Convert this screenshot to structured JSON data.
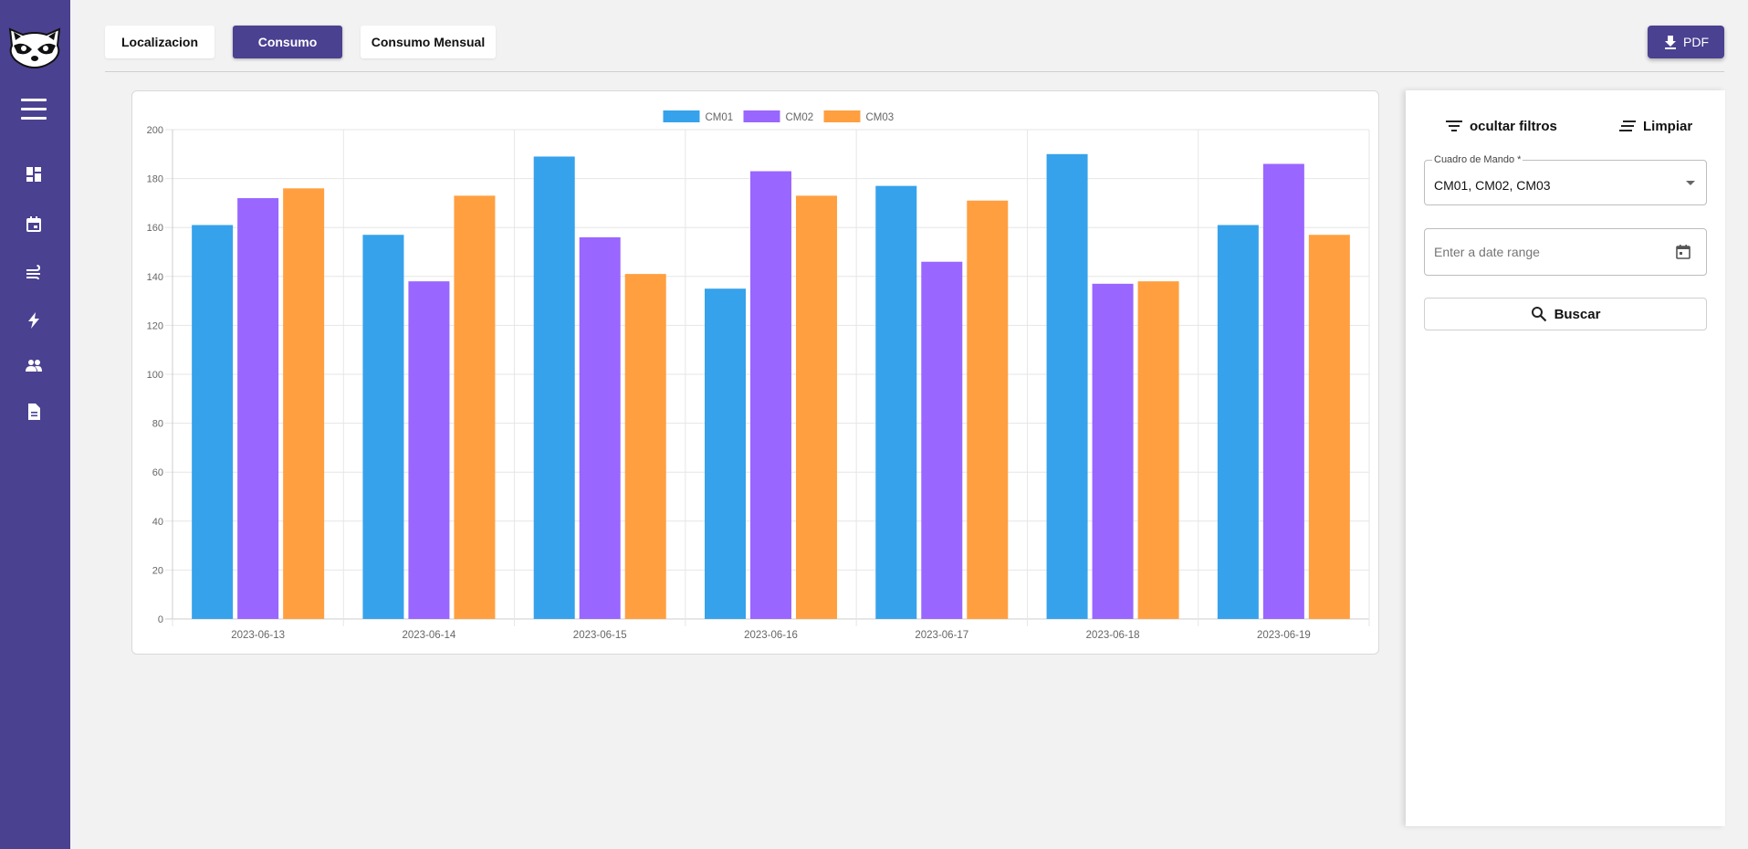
{
  "nav": {
    "items": [
      {
        "icon": "dashboard-icon"
      },
      {
        "icon": "calendar-icon"
      },
      {
        "icon": "wind-icon"
      },
      {
        "icon": "bolt-icon"
      },
      {
        "icon": "people-icon"
      },
      {
        "icon": "document-icon"
      }
    ]
  },
  "tabs": {
    "localizacion": "Localizacion",
    "consumo": "Consumo",
    "consumo_mensual": "Consumo Mensual"
  },
  "toolbar": {
    "pdf_label": "PDF"
  },
  "filters": {
    "hide_label": "ocultar filtros",
    "clear_label": "Limpiar",
    "cuadro_label": "Cuadro de Mando *",
    "cuadro_value": "CM01, CM02, CM03",
    "date_placeholder": "Enter a date range",
    "search_label": "Buscar"
  },
  "colors": {
    "accent": "#4a4191",
    "cm01": "#36a2eb",
    "cm02": "#9966ff",
    "cm03": "#ff9f40"
  },
  "chart_data": {
    "type": "bar",
    "categories": [
      "2023-06-13",
      "2023-06-14",
      "2023-06-15",
      "2023-06-16",
      "2023-06-17",
      "2023-06-18",
      "2023-06-19"
    ],
    "series": [
      {
        "name": "CM01",
        "color": "#36a2eb",
        "values": [
          161,
          157,
          189,
          135,
          177,
          190,
          161
        ]
      },
      {
        "name": "CM02",
        "color": "#9966ff",
        "values": [
          172,
          138,
          156,
          183,
          146,
          137,
          186
        ]
      },
      {
        "name": "CM03",
        "color": "#ff9f40",
        "values": [
          176,
          173,
          141,
          173,
          171,
          138,
          157
        ]
      }
    ],
    "ylim": [
      0,
      200
    ],
    "yticks": [
      0,
      20,
      40,
      60,
      80,
      100,
      120,
      140,
      160,
      180,
      200
    ],
    "legend": "top-center",
    "grid": true
  }
}
